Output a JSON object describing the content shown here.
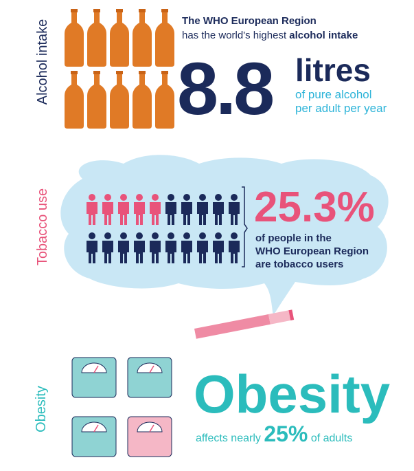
{
  "alcohol": {
    "label": "Alcohol intake",
    "headline_1": "The WHO European Region",
    "headline_2": "has the world's highest",
    "headline_bold": "alcohol intake",
    "value": "8.8",
    "unit": "litres",
    "caption_1": "of pure alcohol",
    "caption_2": "per adult per year"
  },
  "tobacco": {
    "label": "Tobacco use",
    "value": "25.3%",
    "caption_1": "of people in the",
    "caption_2": "WHO European Region",
    "caption_3": "are tobacco users"
  },
  "obesity": {
    "label": "Obesity",
    "title": "Obesity",
    "caption_pre": "affects nearly",
    "caption_value": "25%",
    "caption_post": "of adults"
  }
}
